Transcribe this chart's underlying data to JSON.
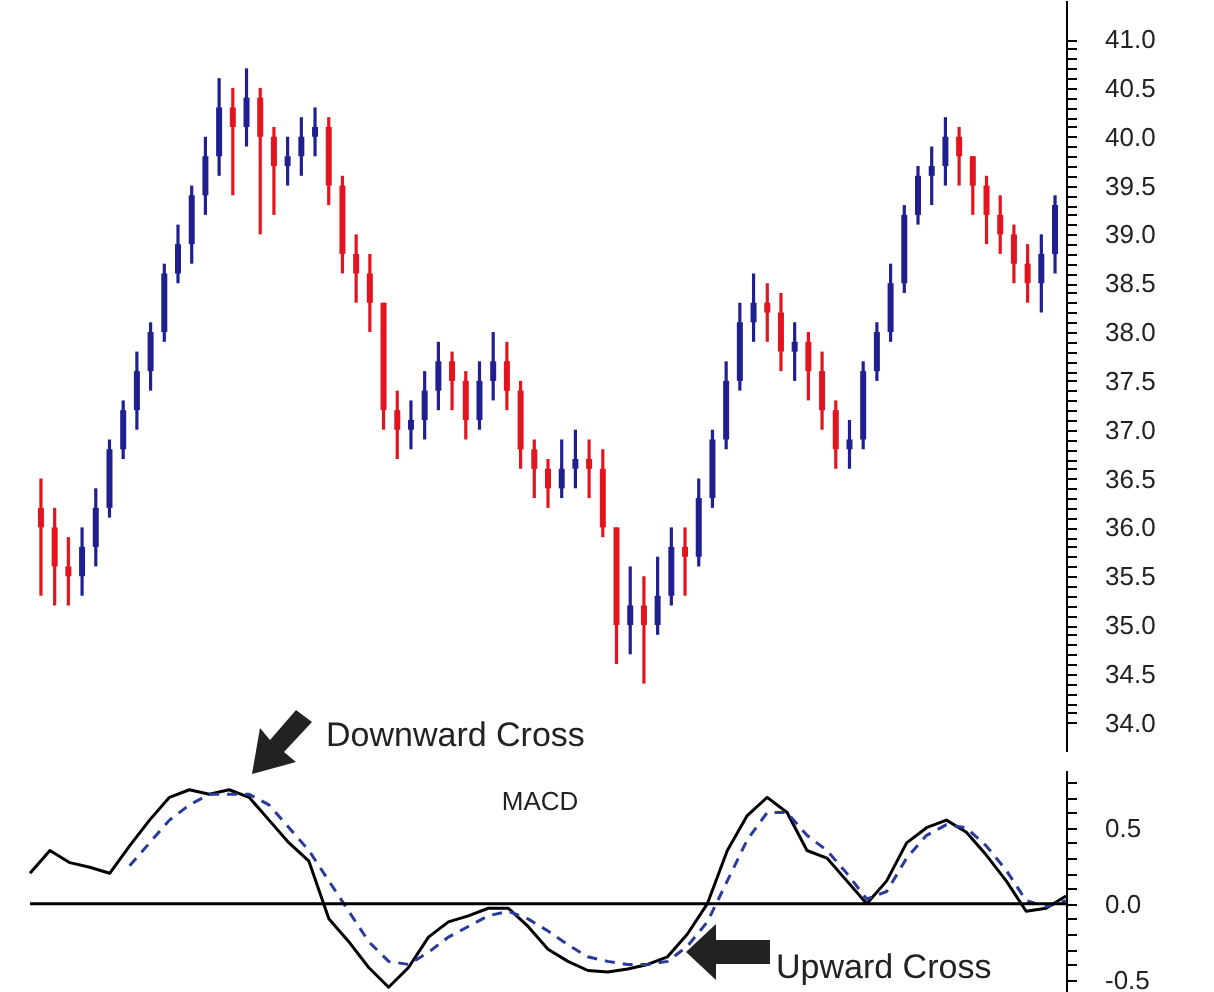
{
  "chart_data": [
    {
      "type": "candlestick",
      "categories": [
        null,
        null,
        null,
        null,
        null,
        null,
        null,
        null,
        null,
        null,
        null,
        null,
        null,
        null,
        null,
        null,
        null,
        null,
        null,
        null,
        null,
        null,
        null,
        null,
        null,
        null,
        null,
        null,
        null,
        null,
        null,
        null,
        null,
        null,
        null,
        null,
        null,
        null,
        null,
        null,
        null,
        null,
        null,
        null,
        null,
        null,
        null,
        null,
        null,
        null,
        null,
        null,
        null,
        null,
        null,
        null,
        null,
        null,
        null,
        null,
        null,
        null,
        null,
        null,
        null,
        null,
        null,
        null,
        null,
        null,
        null,
        null,
        null,
        null,
        null
      ],
      "ohlc": [
        [
          36.2,
          36.5,
          35.3,
          36.0
        ],
        [
          36.0,
          36.2,
          35.2,
          35.6
        ],
        [
          35.6,
          35.9,
          35.2,
          35.5
        ],
        [
          35.5,
          36.0,
          35.3,
          35.8
        ],
        [
          35.8,
          36.4,
          35.6,
          36.2
        ],
        [
          36.2,
          36.9,
          36.1,
          36.8
        ],
        [
          36.8,
          37.3,
          36.7,
          37.2
        ],
        [
          37.2,
          37.8,
          37.0,
          37.6
        ],
        [
          37.6,
          38.1,
          37.4,
          38.0
        ],
        [
          38.0,
          38.7,
          37.9,
          38.6
        ],
        [
          38.6,
          39.1,
          38.5,
          38.9
        ],
        [
          38.9,
          39.5,
          38.7,
          39.4
        ],
        [
          39.4,
          40.0,
          39.2,
          39.8
        ],
        [
          39.8,
          40.6,
          39.6,
          40.3
        ],
        [
          40.3,
          40.5,
          39.4,
          40.1
        ],
        [
          40.1,
          40.7,
          39.9,
          40.4
        ],
        [
          40.4,
          40.5,
          39.0,
          40.0
        ],
        [
          40.0,
          40.1,
          39.2,
          39.7
        ],
        [
          39.7,
          40.0,
          39.5,
          39.8
        ],
        [
          39.8,
          40.2,
          39.6,
          40.0
        ],
        [
          40.0,
          40.3,
          39.8,
          40.1
        ],
        [
          40.1,
          40.2,
          39.3,
          39.5
        ],
        [
          39.5,
          39.6,
          38.6,
          38.8
        ],
        [
          38.8,
          39.0,
          38.3,
          38.6
        ],
        [
          38.6,
          38.8,
          38.0,
          38.3
        ],
        [
          38.3,
          38.3,
          37.0,
          37.2
        ],
        [
          37.2,
          37.4,
          36.7,
          37.0
        ],
        [
          37.0,
          37.3,
          36.8,
          37.1
        ],
        [
          37.1,
          37.6,
          36.9,
          37.4
        ],
        [
          37.4,
          37.9,
          37.2,
          37.7
        ],
        [
          37.7,
          37.8,
          37.2,
          37.5
        ],
        [
          37.5,
          37.6,
          36.9,
          37.1
        ],
        [
          37.1,
          37.7,
          37.0,
          37.5
        ],
        [
          37.5,
          38.0,
          37.3,
          37.7
        ],
        [
          37.7,
          37.9,
          37.2,
          37.4
        ],
        [
          37.4,
          37.5,
          36.6,
          36.8
        ],
        [
          36.8,
          36.9,
          36.3,
          36.6
        ],
        [
          36.6,
          36.7,
          36.2,
          36.4
        ],
        [
          36.4,
          36.9,
          36.3,
          36.6
        ],
        [
          36.6,
          37.0,
          36.4,
          36.7
        ],
        [
          36.7,
          36.9,
          36.3,
          36.6
        ],
        [
          36.6,
          36.8,
          35.9,
          36.0
        ],
        [
          36.0,
          36.0,
          34.6,
          35.0
        ],
        [
          35.0,
          35.6,
          34.7,
          35.2
        ],
        [
          35.2,
          35.5,
          34.4,
          35.0
        ],
        [
          35.0,
          35.7,
          34.9,
          35.3
        ],
        [
          35.3,
          36.0,
          35.2,
          35.8
        ],
        [
          35.8,
          36.0,
          35.3,
          35.7
        ],
        [
          35.7,
          36.5,
          35.6,
          36.3
        ],
        [
          36.3,
          37.0,
          36.2,
          36.9
        ],
        [
          36.9,
          37.7,
          36.8,
          37.5
        ],
        [
          37.5,
          38.3,
          37.4,
          38.1
        ],
        [
          38.1,
          38.6,
          37.9,
          38.3
        ],
        [
          38.3,
          38.5,
          37.9,
          38.2
        ],
        [
          38.2,
          38.4,
          37.6,
          37.8
        ],
        [
          37.8,
          38.1,
          37.5,
          37.9
        ],
        [
          37.9,
          38.0,
          37.3,
          37.6
        ],
        [
          37.6,
          37.8,
          37.0,
          37.2
        ],
        [
          37.2,
          37.3,
          36.6,
          36.8
        ],
        [
          36.8,
          37.1,
          36.6,
          36.9
        ],
        [
          36.9,
          37.7,
          36.8,
          37.6
        ],
        [
          37.6,
          38.1,
          37.5,
          38.0
        ],
        [
          38.0,
          38.7,
          37.9,
          38.5
        ],
        [
          38.5,
          39.3,
          38.4,
          39.2
        ],
        [
          39.2,
          39.7,
          39.1,
          39.6
        ],
        [
          39.6,
          39.9,
          39.3,
          39.7
        ],
        [
          39.7,
          40.2,
          39.5,
          40.0
        ],
        [
          40.0,
          40.1,
          39.5,
          39.8
        ],
        [
          39.8,
          39.8,
          39.2,
          39.5
        ],
        [
          39.5,
          39.6,
          38.9,
          39.2
        ],
        [
          39.2,
          39.4,
          38.8,
          39.0
        ],
        [
          39.0,
          39.1,
          38.5,
          38.7
        ],
        [
          38.7,
          38.9,
          38.3,
          38.5
        ],
        [
          38.5,
          39.0,
          38.2,
          38.8
        ],
        [
          38.8,
          39.4,
          38.6,
          39.3
        ]
      ],
      "colors": [
        "#e3141e",
        "#e3141e",
        "#e3141e",
        "#1f1f8f",
        "#1f1f8f",
        "#1f1f8f",
        "#1f1f8f",
        "#1f1f8f",
        "#1f1f8f",
        "#1f1f8f",
        "#1f1f8f",
        "#1f1f8f",
        "#1f1f8f",
        "#1f1f8f",
        "#e3141e",
        "#1f1f8f",
        "#e3141e",
        "#e3141e",
        "#1f1f8f",
        "#1f1f8f",
        "#1f1f8f",
        "#e3141e",
        "#e3141e",
        "#e3141e",
        "#e3141e",
        "#e3141e",
        "#e3141e",
        "#1f1f8f",
        "#1f1f8f",
        "#1f1f8f",
        "#e3141e",
        "#e3141e",
        "#1f1f8f",
        "#1f1f8f",
        "#e3141e",
        "#e3141e",
        "#e3141e",
        "#e3141e",
        "#1f1f8f",
        "#1f1f8f",
        "#e3141e",
        "#e3141e",
        "#e3141e",
        "#1f1f8f",
        "#e3141e",
        "#1f1f8f",
        "#1f1f8f",
        "#e3141e",
        "#1f1f8f",
        "#1f1f8f",
        "#1f1f8f",
        "#1f1f8f",
        "#1f1f8f",
        "#e3141e",
        "#e3141e",
        "#1f1f8f",
        "#e3141e",
        "#e3141e",
        "#e3141e",
        "#1f1f8f",
        "#1f1f8f",
        "#1f1f8f",
        "#1f1f8f",
        "#1f1f8f",
        "#1f1f8f",
        "#1f1f8f",
        "#1f1f8f",
        "#e3141e",
        "#e3141e",
        "#e3141e",
        "#e3141e",
        "#e3141e",
        "#e3141e",
        "#1f1f8f",
        "#1f1f8f"
      ],
      "ylim": [
        33.7,
        41.4
      ],
      "yticks": [
        {
          "value": 34,
          "label": "34.0"
        },
        {
          "value": 34.1,
          "label": null
        },
        {
          "value": 34.2,
          "label": null
        },
        {
          "value": 34.3,
          "label": null
        },
        {
          "value": 34.4,
          "label": null
        },
        34.5,
        {
          "value": 34.6,
          "label": null
        },
        {
          "value": 34.7,
          "label": null
        },
        {
          "value": 34.8,
          "label": null
        },
        {
          "value": 34.9,
          "label": null
        },
        {
          "value": 35,
          "label": "35.0"
        },
        {
          "value": 35.1,
          "label": null
        },
        {
          "value": 35.2,
          "label": null
        },
        {
          "value": 35.3,
          "label": null
        },
        {
          "value": 35.4,
          "label": null
        },
        35.5,
        {
          "value": 35.6,
          "label": null
        },
        {
          "value": 35.7,
          "label": null
        },
        {
          "value": 35.8,
          "label": null
        },
        {
          "value": 35.9,
          "label": null
        },
        {
          "value": 36,
          "label": "36.0"
        },
        {
          "value": 36.1,
          "label": null
        },
        {
          "value": 36.2,
          "label": null
        },
        {
          "value": 36.3,
          "label": null
        },
        {
          "value": 36.4,
          "label": null
        },
        36.5,
        {
          "value": 36.6,
          "label": null
        },
        {
          "value": 36.7,
          "label": null
        },
        {
          "value": 36.8,
          "label": null
        },
        {
          "value": 36.9,
          "label": null
        },
        {
          "value": 37,
          "label": "37.0"
        },
        {
          "value": 37.1,
          "label": null
        },
        {
          "value": 37.2,
          "label": null
        },
        {
          "value": 37.3,
          "label": null
        },
        {
          "value": 37.4,
          "label": null
        },
        37.5,
        {
          "value": 37.6,
          "label": null
        },
        {
          "value": 37.7,
          "label": null
        },
        {
          "value": 37.8,
          "label": null
        },
        {
          "value": 37.9,
          "label": null
        },
        {
          "value": 38,
          "label": "38.0"
        },
        {
          "value": 38.1,
          "label": null
        },
        {
          "value": 38.2,
          "label": null
        },
        {
          "value": 38.3,
          "label": null
        },
        {
          "value": 38.4,
          "label": null
        },
        38.5,
        {
          "value": 38.6,
          "label": null
        },
        {
          "value": 38.7,
          "label": null
        },
        {
          "value": 38.8,
          "label": null
        },
        {
          "value": 38.9,
          "label": null
        },
        {
          "value": 39,
          "label": "39.0"
        },
        {
          "value": 39.1,
          "label": null
        },
        {
          "value": 39.2,
          "label": null
        },
        {
          "value": 39.3,
          "label": null
        },
        {
          "value": 39.4,
          "label": null
        },
        39.5,
        {
          "value": 39.6,
          "label": null
        },
        {
          "value": 39.7,
          "label": null
        },
        {
          "value": 39.8,
          "label": null
        },
        {
          "value": 39.9,
          "label": null
        },
        {
          "value": 40,
          "label": "40.0"
        },
        {
          "value": 40.1,
          "label": null
        },
        {
          "value": 40.2,
          "label": null
        },
        {
          "value": 40.3,
          "label": null
        },
        {
          "value": 40.4,
          "label": null
        },
        40.5,
        {
          "value": 40.6,
          "label": null
        },
        {
          "value": 40.7,
          "label": null
        },
        {
          "value": 40.8,
          "label": null
        },
        {
          "value": 40.9,
          "label": null
        },
        {
          "value": 41,
          "label": "41.0"
        }
      ],
      "tick_labels": "y"
    },
    {
      "type": "line",
      "title": "MACD",
      "categories": [
        null,
        null,
        null,
        null,
        null,
        null,
        null,
        null,
        null,
        null,
        null,
        null,
        null,
        null,
        null,
        null,
        null,
        null,
        null,
        null,
        null,
        null,
        null,
        null,
        null,
        null,
        null,
        null,
        null,
        null,
        null,
        null,
        null,
        null,
        null,
        null,
        null,
        null,
        null,
        null,
        null,
        null,
        null,
        null,
        null,
        null,
        null,
        null,
        null,
        null,
        null,
        null,
        null
      ],
      "series": [
        {
          "color": "#000000",
          "line_style": "solid",
          "values": [
            0.2,
            0.35,
            0.27,
            0.24,
            0.2,
            0.38,
            0.55,
            0.7,
            0.75,
            0.72,
            0.75,
            0.7,
            0.55,
            0.4,
            0.28,
            -0.1,
            -0.25,
            -0.42,
            -0.55,
            -0.42,
            -0.22,
            -0.12,
            -0.08,
            -0.03,
            -0.03,
            -0.15,
            -0.3,
            -0.38,
            -0.44,
            -0.45,
            -0.43,
            -0.4,
            -0.35,
            -0.2,
            0.0,
            0.35,
            0.58,
            0.7,
            0.6,
            0.35,
            0.3,
            0.15,
            0.0,
            0.15,
            0.4,
            0.5,
            0.55,
            0.47,
            0.32,
            0.15,
            -0.05,
            -0.03,
            0.05
          ]
        },
        {
          "color": "#2a3a9a",
          "line_style": "dashed",
          "values": [
            null,
            null,
            null,
            null,
            null,
            0.25,
            0.4,
            0.55,
            0.65,
            0.72,
            0.72,
            0.72,
            0.65,
            0.5,
            0.35,
            0.15,
            -0.05,
            -0.25,
            -0.38,
            -0.4,
            -0.32,
            -0.22,
            -0.15,
            -0.08,
            -0.05,
            -0.1,
            -0.18,
            -0.27,
            -0.35,
            -0.38,
            -0.4,
            -0.4,
            -0.38,
            -0.28,
            -0.12,
            0.15,
            0.42,
            0.6,
            0.6,
            0.45,
            0.35,
            0.2,
            0.03,
            0.08,
            0.3,
            0.45,
            0.52,
            0.5,
            0.38,
            0.22,
            0.02,
            -0.02,
            0.02
          ]
        }
      ],
      "ylim": [
        -0.7,
        0.88
      ],
      "yticks": [
        {
          "value": -0.6,
          "label": null
        },
        -0.5,
        {
          "value": -0.4,
          "label": null
        },
        {
          "value": -0.3,
          "label": null
        },
        {
          "value": -0.2,
          "label": null
        },
        {
          "value": -0.1,
          "label": null
        },
        {
          "value": 0,
          "label": "0.0"
        },
        {
          "value": 0.1,
          "label": null
        },
        {
          "value": 0.2,
          "label": null
        },
        {
          "value": 0.3,
          "label": null
        },
        {
          "value": 0.4,
          "label": null
        },
        0.5,
        {
          "value": 0.6,
          "label": null
        },
        {
          "value": 0.7,
          "label": null
        },
        {
          "value": 0.8,
          "label": null
        }
      ],
      "ref_lines": [
        {
          "axis": "y",
          "value": 0
        }
      ],
      "annotations": [
        "Downward Cross",
        "Upward Cross"
      ],
      "tick_labels": "y"
    }
  ]
}
